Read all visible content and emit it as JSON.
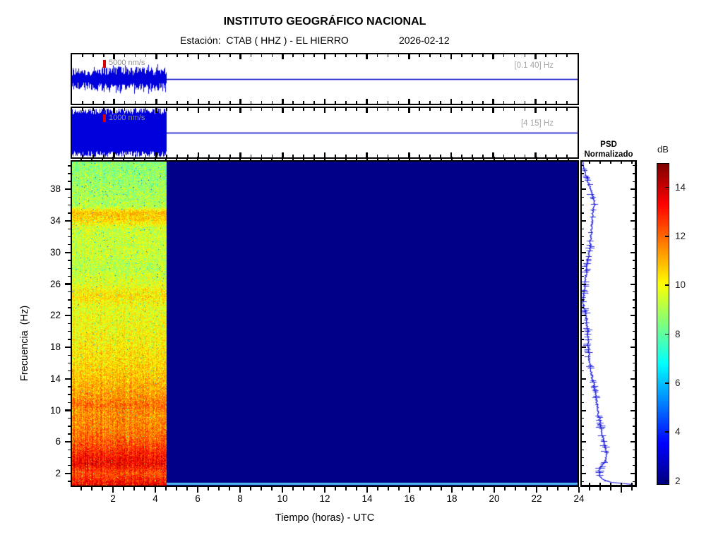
{
  "figure": {
    "title": "INSTITUTO GEOGRÁFICO NACIONAL",
    "station_text": "Estación:  CTAB ( HHZ ) - EL HIERRO",
    "date": "2026-02-12"
  },
  "traces": [
    {
      "scale_label": "5000 nm/s",
      "band_label": "[0.1 40] Hz"
    },
    {
      "scale_label": "1000 nm/s",
      "band_label": "[4 15] Hz"
    }
  ],
  "psd": {
    "title_line1": "PSD",
    "title_line2": "Normalizado"
  },
  "axes": {
    "xlabel": "Tiempo (horas) - UTC",
    "ylabel": "Frecuencia  (Hz)"
  },
  "colorbar_label": "dB",
  "colors": {
    "trace_blue": "#0000DC",
    "baseline_blue": "#0000C8",
    "psd_blue": "#1010D8",
    "marker_red": "#D80000",
    "no_data_navy": "#000084",
    "bottom_strip": "#50BEF0"
  },
  "chart_data": {
    "type": "heatmap",
    "title": "INSTITUTO GEOGRÁFICO NACIONAL",
    "subtitle": "Estación: CTAB ( HHZ ) - EL HIERRO  2026-02-12",
    "xlabel": "Tiempo (horas) - UTC",
    "ylabel": "Frecuencia (Hz)",
    "x_range_hours": [
      0,
      24
    ],
    "x_axis_extension_hours": 26.5,
    "x_ticks": [
      2,
      4,
      6,
      8,
      10,
      12,
      14,
      16,
      18,
      20,
      22,
      24
    ],
    "x_minor_step_hours": 0.5,
    "y_range_hz": [
      0.3,
      41.7
    ],
    "y_ticks": [
      2,
      6,
      10,
      14,
      18,
      22,
      26,
      30,
      34,
      38
    ],
    "y_minor_step_hz": 1,
    "data_end_hours": 4.5,
    "no_data_value_db": 2.0,
    "colormap": "jet",
    "colorbar": {
      "label": "dB",
      "vmin": 1.9,
      "vmax": 15.0,
      "ticks": [
        2,
        4,
        6,
        8,
        10,
        12,
        14
      ]
    },
    "spectrum_profile_db_by_hz": [
      [
        0.3,
        13.5
      ],
      [
        0.7,
        13.2
      ],
      [
        1.2,
        12.7
      ],
      [
        1.8,
        12.3
      ],
      [
        2.5,
        12.9
      ],
      [
        3,
        13.4
      ],
      [
        4,
        13.1
      ],
      [
        5,
        12.6
      ],
      [
        6,
        12.1
      ],
      [
        7,
        11.8
      ],
      [
        8,
        11.6
      ],
      [
        9.5,
        11.5
      ],
      [
        10.5,
        11.9
      ],
      [
        12,
        11.3
      ],
      [
        14,
        10.8
      ],
      [
        16,
        10.5
      ],
      [
        18,
        10.2
      ],
      [
        20,
        10.0
      ],
      [
        23,
        9.8
      ],
      [
        24.5,
        10.4
      ],
      [
        26,
        9.7
      ],
      [
        28,
        9.2
      ],
      [
        30,
        9.4
      ],
      [
        33,
        9.4
      ],
      [
        34.4,
        10.6
      ],
      [
        35.2,
        10.9
      ],
      [
        36,
        9.1
      ],
      [
        38,
        8.9
      ],
      [
        41.7,
        8.6
      ]
    ],
    "psd_curve_xfrac_by_yfrac": [
      [
        0,
        0.01
      ],
      [
        0.022,
        0.05
      ],
      [
        0.066,
        0.13
      ],
      [
        0.131,
        0.25
      ],
      [
        0.153,
        0.21
      ],
      [
        0.218,
        0.18
      ],
      [
        0.262,
        0.16
      ],
      [
        0.306,
        0.11
      ],
      [
        0.349,
        0.08
      ],
      [
        0.393,
        0.05
      ],
      [
        0.437,
        0.03
      ],
      [
        0.48,
        0.08
      ],
      [
        0.524,
        0.11
      ],
      [
        0.568,
        0.12
      ],
      [
        0.611,
        0.14
      ],
      [
        0.655,
        0.18
      ],
      [
        0.699,
        0.24
      ],
      [
        0.742,
        0.28
      ],
      [
        0.786,
        0.32
      ],
      [
        0.83,
        0.37
      ],
      [
        0.873,
        0.42
      ],
      [
        0.906,
        0.47
      ],
      [
        0.928,
        0.45
      ],
      [
        0.95,
        0.34
      ],
      [
        0.972,
        0.32
      ],
      [
        0.985,
        0.41
      ],
      [
        0.993,
        0.53
      ],
      [
        1,
        0.97
      ]
    ],
    "traces": [
      {
        "band_hz": [
          0.1,
          40
        ],
        "scale_nm_s": 5000,
        "clipped": false
      },
      {
        "band_hz": [
          4,
          15
        ],
        "scale_nm_s": 1000,
        "clipped": true
      }
    ]
  }
}
